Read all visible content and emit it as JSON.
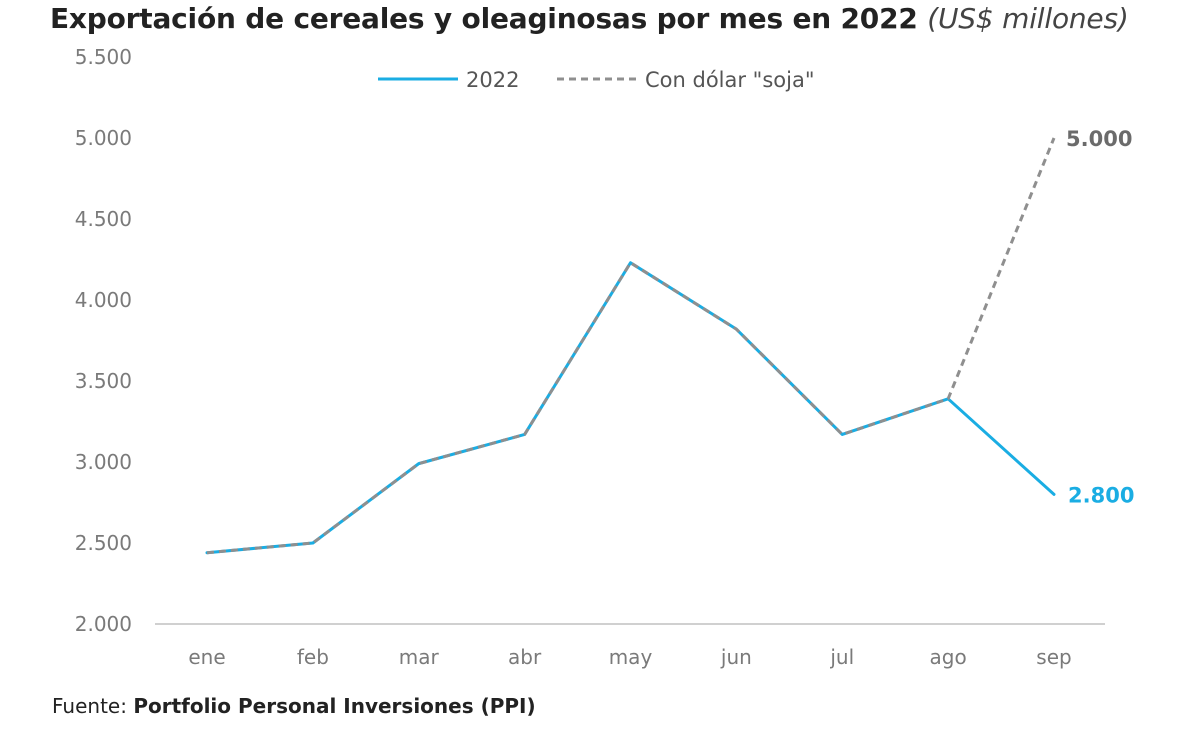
{
  "header": {
    "title": "Exportación de cereales y oleaginosas por mes en 2022",
    "unit": "(US$ millones)"
  },
  "source": {
    "prefix": "Fuente:",
    "name": "Portfolio Personal Inversiones (PPI)"
  },
  "colors": {
    "series_2022": "#1aade3",
    "series_soja": "#8f8f8f",
    "axis": "#d0d0d0"
  },
  "chart_data": {
    "type": "line",
    "title": "Exportación de cereales y oleaginosas por mes en 2022",
    "subtitle": "(US$ millones)",
    "xlabel": "",
    "ylabel": "",
    "categories": [
      "ene",
      "feb",
      "mar",
      "abr",
      "may",
      "jun",
      "jul",
      "ago",
      "sep"
    ],
    "y_ticks": [
      "2.000",
      "2.500",
      "3.000",
      "3.500",
      "4.000",
      "4.500",
      "5.000",
      "5.500"
    ],
    "ylim": [
      2000,
      5500
    ],
    "grid": false,
    "legend_position": "top",
    "series": [
      {
        "name": "2022",
        "style": "solid",
        "color": "#1aade3",
        "values": [
          2440,
          2500,
          2990,
          3170,
          4230,
          3820,
          3170,
          3390,
          2800
        ],
        "end_label": "2.800"
      },
      {
        "name": "Con dólar \"soja\"",
        "style": "dashed",
        "color": "#8f8f8f",
        "values": [
          2440,
          2500,
          2990,
          3170,
          4230,
          3820,
          3170,
          3390,
          5000
        ],
        "end_label": "5.000"
      }
    ]
  }
}
